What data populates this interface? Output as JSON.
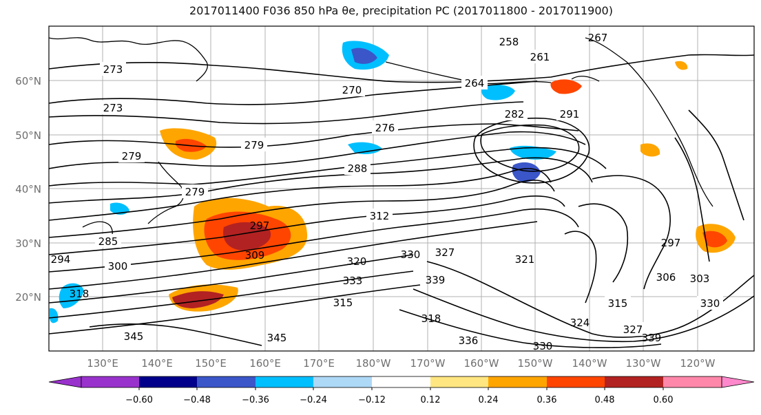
{
  "title": "2017011400 F036 850 hPa θe, precipitation PC (2017011800 - 2017011900)",
  "map": {
    "lon_labels": [
      "130°E",
      "140°E",
      "150°E",
      "160°E",
      "170°E",
      "180°W",
      "170°W",
      "160°W",
      "150°W",
      "140°W",
      "130°W",
      "120°W"
    ],
    "lat_labels": [
      "60°N",
      "50°N",
      "40°N",
      "30°N",
      "20°N"
    ],
    "contour_labels": [
      "273",
      "273",
      "279",
      "279",
      "279",
      "285",
      "294",
      "300",
      "318",
      "345",
      "258",
      "261",
      "264",
      "267",
      "270",
      "276",
      "282",
      "288",
      "291",
      "297",
      "309",
      "312",
      "320",
      "330",
      "327",
      "333",
      "339",
      "321",
      "318",
      "315",
      "306",
      "303",
      "297",
      "330",
      "315",
      "327",
      "324",
      "339",
      "330",
      "336",
      "345"
    ]
  },
  "colorbar": {
    "ticks": [
      "−0.60",
      "−0.48",
      "−0.36",
      "−0.24",
      "−0.12",
      "0.12",
      "0.24",
      "0.36",
      "0.48",
      "0.60"
    ],
    "colors": [
      "#9932cc",
      "#00008b",
      "#3a56c9",
      "#00bfff",
      "#add8f6",
      "#ffffff",
      "#ffe680",
      "#ffa500",
      "#ff4500",
      "#b22222",
      "#ff88aa",
      "#ff88cc"
    ]
  }
}
